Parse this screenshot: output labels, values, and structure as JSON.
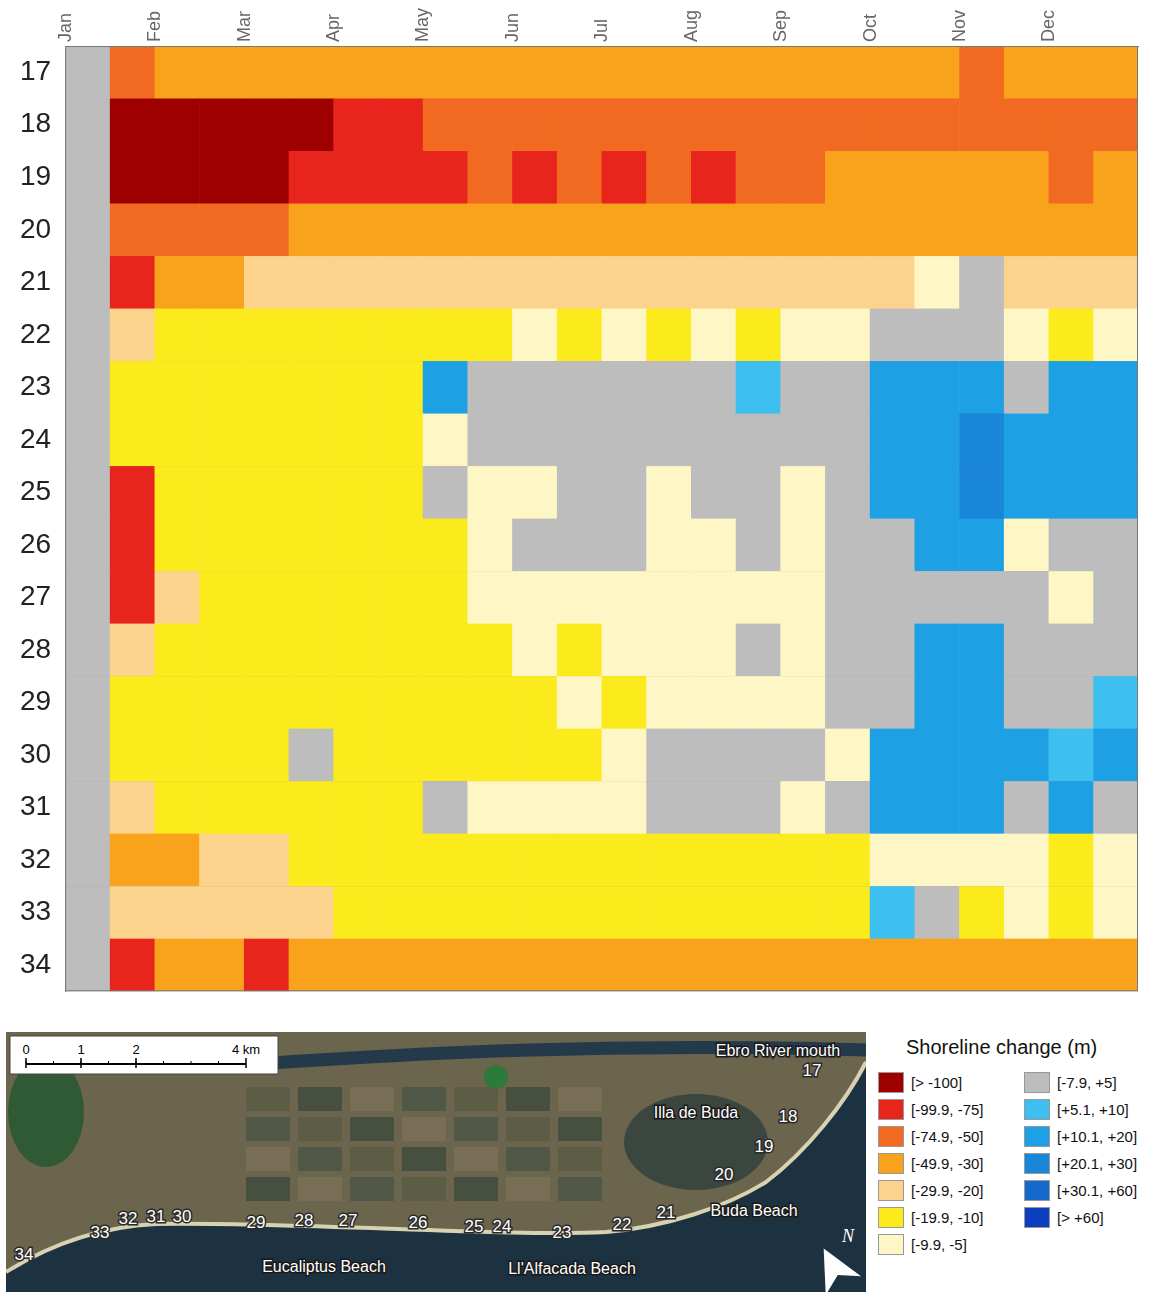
{
  "chart_data": {
    "type": "heatmap",
    "categories": [
      "Jan",
      null,
      "Feb",
      null,
      "Mar",
      null,
      "Apr",
      null,
      "May",
      null,
      "Jun",
      null,
      "Jul",
      null,
      "Aug",
      null,
      "Sep",
      null,
      "Oct",
      null,
      "Nov",
      null,
      "Dec",
      null
    ],
    "rows": [
      17,
      18,
      19,
      20,
      21,
      22,
      23,
      24,
      25,
      26,
      27,
      28,
      29,
      30,
      31,
      32,
      33,
      34
    ],
    "ylim": [
      16.5,
      34.5
    ],
    "yticks": [
      17,
      18,
      19,
      20,
      21,
      22,
      23,
      24,
      25,
      26,
      27,
      28,
      29,
      30,
      31,
      32,
      33,
      34
    ],
    "grid": false,
    "cells": [
      [
        0,
        -60,
        -40,
        -40,
        -40,
        -40,
        -40,
        -40,
        -40,
        -40,
        -40,
        -40,
        -40,
        -40,
        -40,
        -40,
        -40,
        -40,
        -40,
        -40,
        -60,
        -40,
        -40,
        -40
      ],
      [
        0,
        -120,
        -120,
        -120,
        -120,
        -120,
        -85,
        -85,
        -60,
        -60,
        -60,
        -60,
        -60,
        -60,
        -60,
        -60,
        -60,
        -60,
        -60,
        -60,
        -60,
        -60,
        -60,
        -60
      ],
      [
        0,
        -120,
        -120,
        -120,
        -120,
        -85,
        -85,
        -85,
        -85,
        -60,
        -85,
        -60,
        -85,
        -60,
        -85,
        -60,
        -60,
        -40,
        -40,
        -40,
        -40,
        -40,
        -60,
        -40
      ],
      [
        0,
        -60,
        -60,
        -60,
        -60,
        -40,
        -40,
        -40,
        -40,
        -40,
        -40,
        -40,
        -40,
        -40,
        -40,
        -40,
        -40,
        -40,
        -40,
        -40,
        -40,
        -40,
        -40,
        -40
      ],
      [
        0,
        -85,
        -40,
        -40,
        -25,
        -25,
        -25,
        -25,
        -25,
        -25,
        -25,
        -25,
        -25,
        -25,
        -25,
        -25,
        -25,
        -25,
        -25,
        -9,
        0,
        -25,
        -25,
        -25
      ],
      [
        0,
        -25,
        -15,
        -15,
        -15,
        -15,
        -15,
        -15,
        -15,
        -15,
        -9,
        -15,
        -9,
        -15,
        -9,
        -15,
        -9,
        -9,
        0,
        0,
        0,
        -9,
        -15,
        -9
      ],
      [
        0,
        -15,
        -15,
        -15,
        -15,
        -15,
        -15,
        -15,
        15,
        0,
        0,
        0,
        0,
        0,
        0,
        8,
        0,
        0,
        15,
        15,
        15,
        0,
        15,
        15
      ],
      [
        0,
        -15,
        -15,
        -15,
        -15,
        -15,
        -15,
        -15,
        -9,
        0,
        0,
        0,
        0,
        0,
        0,
        0,
        0,
        0,
        15,
        15,
        25,
        15,
        15,
        15
      ],
      [
        0,
        -85,
        -15,
        -15,
        -15,
        -15,
        -15,
        -15,
        0,
        -9,
        -9,
        0,
        0,
        -9,
        0,
        0,
        -9,
        0,
        15,
        15,
        25,
        15,
        15,
        15
      ],
      [
        0,
        -85,
        -15,
        -15,
        -15,
        -15,
        -15,
        -15,
        -15,
        -9,
        0,
        0,
        0,
        -9,
        -9,
        0,
        -9,
        0,
        0,
        15,
        15,
        -9,
        0,
        0
      ],
      [
        0,
        -85,
        -25,
        -15,
        -15,
        -15,
        -15,
        -15,
        -15,
        -9,
        -9,
        -9,
        -9,
        -9,
        -9,
        -9,
        -9,
        0,
        0,
        0,
        0,
        0,
        -9,
        0
      ],
      [
        0,
        -25,
        -15,
        -15,
        -15,
        -15,
        -15,
        -15,
        -15,
        -15,
        -9,
        -15,
        -9,
        -9,
        -9,
        0,
        -9,
        0,
        0,
        15,
        15,
        0,
        0,
        0
      ],
      [
        0,
        -15,
        -15,
        -15,
        -15,
        -15,
        -15,
        -15,
        -15,
        -15,
        -15,
        -9,
        -15,
        -9,
        -9,
        -9,
        -9,
        0,
        0,
        15,
        15,
        0,
        0,
        8
      ],
      [
        0,
        -15,
        -15,
        -15,
        -15,
        0,
        -15,
        -15,
        -15,
        -15,
        -15,
        -15,
        -9,
        0,
        0,
        0,
        0,
        -9,
        15,
        15,
        15,
        15,
        8,
        15
      ],
      [
        0,
        -25,
        -15,
        -15,
        -15,
        -15,
        -15,
        -15,
        0,
        -9,
        -9,
        -9,
        -9,
        0,
        0,
        0,
        -9,
        0,
        15,
        15,
        15,
        0,
        15,
        0
      ],
      [
        0,
        -40,
        -40,
        -25,
        -25,
        -15,
        -15,
        -15,
        -15,
        -15,
        -15,
        -15,
        -15,
        -15,
        -15,
        -15,
        -15,
        -15,
        -9,
        -9,
        -9,
        -9,
        -15,
        -9
      ],
      [
        0,
        -25,
        -25,
        -25,
        -25,
        -25,
        -15,
        -15,
        -15,
        -15,
        -15,
        -15,
        -15,
        -15,
        -15,
        -15,
        -15,
        -15,
        8,
        0,
        -15,
        -9,
        -15,
        -9
      ],
      [
        0,
        -85,
        -40,
        -40,
        -85,
        -40,
        -40,
        -40,
        -40,
        -40,
        -40,
        -40,
        -40,
        -40,
        -40,
        -40,
        -40,
        -40,
        -40,
        -40,
        -40,
        -40,
        -40,
        -40
      ]
    ],
    "legend_title": "Shoreline change (m)",
    "color_classes": [
      {
        "label": "[> -100]",
        "min": null,
        "max": -100,
        "color": "#9e0000"
      },
      {
        "label": "[-99.9, -75]",
        "min": -99.9,
        "max": -75,
        "color": "#e8251c"
      },
      {
        "label": "[-74.9, -50]",
        "min": -74.9,
        "max": -50,
        "color": "#f26a21"
      },
      {
        "label": "[-49.9, -30]",
        "min": -49.9,
        "max": -30,
        "color": "#f8a31b"
      },
      {
        "label": "[-29.9, -20]",
        "min": -29.9,
        "max": -20,
        "color": "#fcd38c"
      },
      {
        "label": "[-19.9, -10]",
        "min": -19.9,
        "max": -10,
        "color": "#fbea1c"
      },
      {
        "label": "[-9.9, -5]",
        "min": -9.9,
        "max": -5,
        "color": "#fff6c6"
      },
      {
        "label": "[-7.9, +5]",
        "min": -7.9,
        "max": 5,
        "color": "#bdbdbd"
      },
      {
        "label": "[+5.1, +10]",
        "min": 5.1,
        "max": 10,
        "color": "#3dc0ef"
      },
      {
        "label": "[+10.1, +20]",
        "min": 10.1,
        "max": 20,
        "color": "#1ea1e4"
      },
      {
        "label": "[+20.1, +30]",
        "min": 20.1,
        "max": 30,
        "color": "#1a86da"
      },
      {
        "label": "[+30.1, +60]",
        "min": 30.1,
        "max": 60,
        "color": "#1568cd"
      },
      {
        "label": "[> +60]",
        "min": 60,
        "max": null,
        "color": "#0b3fbf"
      }
    ]
  },
  "map": {
    "place_labels": [
      "Ebro River mouth",
      "Illa de Buda",
      "Buda Beach",
      "Eucaliptus Beach",
      "Ll'Alfacada Beach"
    ],
    "scale_ticks": [
      {
        "value": 0,
        "label": "0"
      },
      {
        "value": 1,
        "label": "1"
      },
      {
        "value": 2,
        "label": "2"
      },
      {
        "value": 4,
        "label": "4 km"
      }
    ],
    "north": "N"
  }
}
